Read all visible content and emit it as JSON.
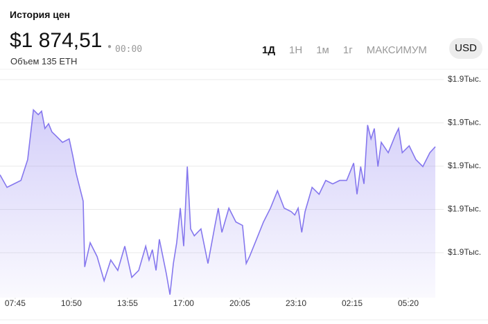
{
  "header": {
    "title": "История цен",
    "price": "$1 874,51",
    "time": "00:00",
    "volume": "Объем 135 ETH"
  },
  "controls": {
    "ranges": [
      "1Д",
      "1Н",
      "1м",
      "1г",
      "МАКСИМУМ"
    ],
    "currency": "USD"
  },
  "chart_data": {
    "type": "area",
    "x": [
      0,
      23,
      46,
      69,
      91,
      110,
      126,
      137,
      148,
      160,
      171,
      183,
      206,
      228,
      240,
      251,
      274,
      279,
      297,
      320,
      343,
      365,
      388,
      411,
      434,
      457,
      480,
      491,
      502,
      514,
      525,
      548,
      560,
      571,
      582,
      594,
      605,
      617,
      628,
      640,
      662,
      685,
      708,
      719,
      731,
      754,
      777,
      799,
      811,
      822,
      845,
      868,
      891,
      914,
      936,
      959,
      971,
      982,
      994,
      1005,
      1028,
      1051,
      1073,
      1096,
      1119,
      1142,
      1165,
      1176,
      1188,
      1199,
      1211,
      1222,
      1233,
      1245,
      1256,
      1279,
      1302,
      1313,
      1325,
      1348,
      1370,
      1393,
      1416,
      1434
    ],
    "series": [
      {
        "name": "ETH",
        "color": "#8577ee",
        "values": [
          1868.0,
          1865.1,
          1865.9,
          1866.7,
          1871.5,
          1883.0,
          1881.9,
          1882.7,
          1878.7,
          1879.8,
          1877.9,
          1877.1,
          1875.5,
          1876.3,
          1872.3,
          1868.3,
          1861.9,
          1846.7,
          1852.3,
          1849.1,
          1843.5,
          1848.3,
          1845.9,
          1851.5,
          1844.3,
          1845.9,
          1851.5,
          1848.3,
          1850.7,
          1845.9,
          1853.1,
          1845.1,
          1840.3,
          1847.5,
          1852.3,
          1860.3,
          1851.5,
          1869.9,
          1855.5,
          1853.9,
          1855.5,
          1847.5,
          1856.3,
          1860.3,
          1854.7,
          1860.3,
          1857.1,
          1856.3,
          1847.5,
          1849.1,
          1853.1,
          1857.1,
          1860.3,
          1864.3,
          1860.3,
          1859.5,
          1858.7,
          1860.3,
          1854.7,
          1859.5,
          1865.1,
          1863.5,
          1866.7,
          1865.9,
          1866.7,
          1866.7,
          1870.7,
          1863.5,
          1869.9,
          1865.9,
          1879.5,
          1876.3,
          1878.7,
          1869.9,
          1875.5,
          1873.1,
          1877.1,
          1878.7,
          1873.1,
          1874.7,
          1871.5,
          1869.9,
          1873.1,
          1874.5
        ]
      }
    ],
    "xlim": [
      0,
      1434
    ],
    "xticks": [
      {
        "value": 50,
        "label": "07:45"
      },
      {
        "value": 235,
        "label": "10:50"
      },
      {
        "value": 420,
        "label": "13:55"
      },
      {
        "value": 605,
        "label": "17:00"
      },
      {
        "value": 790,
        "label": "20:05"
      },
      {
        "value": 975,
        "label": "23:10"
      },
      {
        "value": 1160,
        "label": "02:15"
      },
      {
        "value": 1345,
        "label": "05:20"
      }
    ],
    "ylim": [
      1839.6,
      1890.8
    ],
    "yticks": [
      {
        "value": 1890,
        "label": "$1.9Тыс."
      },
      {
        "value": 1880,
        "label": "$1.9Тыс."
      },
      {
        "value": 1870,
        "label": "$1.9Тыс."
      },
      {
        "value": 1860,
        "label": "$1.9Тыс."
      },
      {
        "value": 1850,
        "label": "$1.9Тыс."
      }
    ],
    "grid": true
  }
}
